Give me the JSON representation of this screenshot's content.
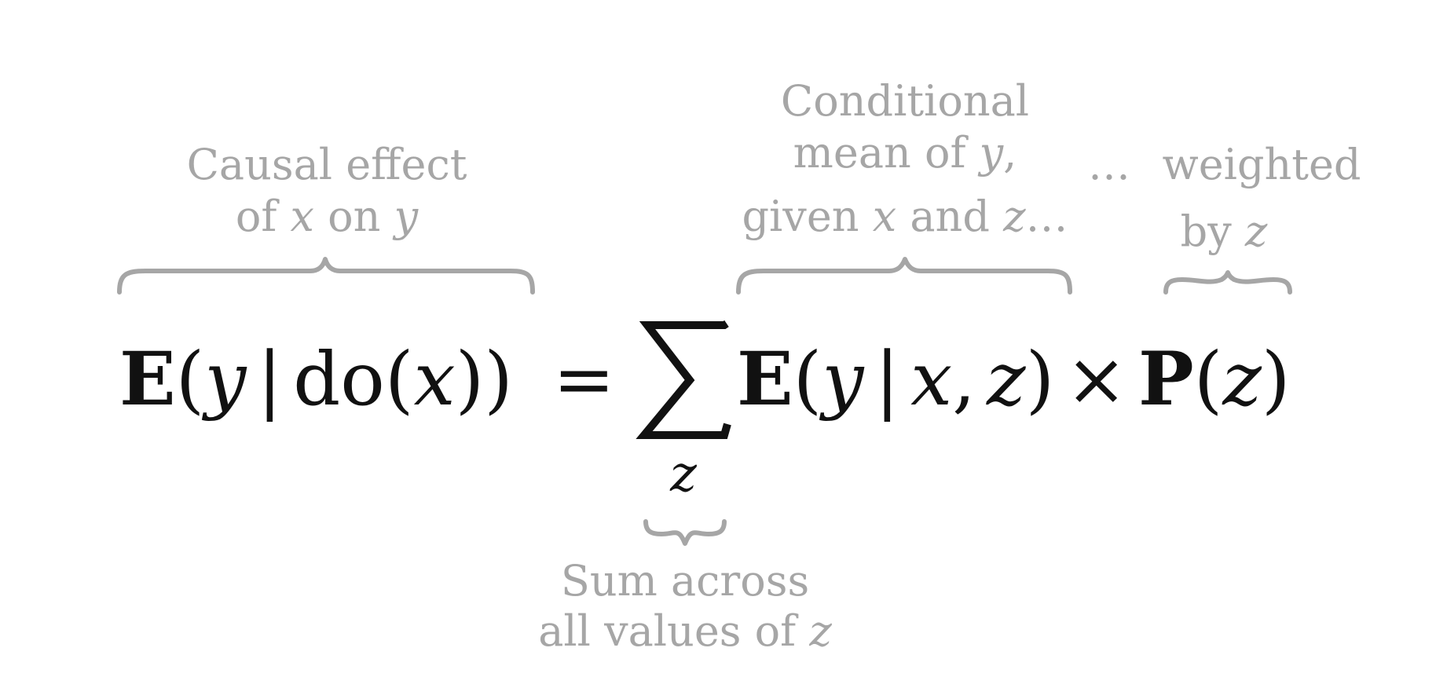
{
  "equation": {
    "lhs": {
      "E": "E",
      "open": "(",
      "y": "y",
      "bar": "|",
      "do": "do",
      "open2": "(",
      "x": "x",
      "close": "))"
    },
    "equals": "=",
    "sum_index": "z",
    "rhs": {
      "E": "E",
      "open": "(",
      "y": "y",
      "bar": "|",
      "x": "x",
      "comma": ",",
      "z": "z",
      "close": ")",
      "times": "×",
      "P": "P",
      "open2": "(",
      "z2": "z",
      "close2": ")"
    }
  },
  "annotations": {
    "causal_effect": {
      "line1": "Causal effect",
      "line2_a": "of ",
      "line2_x": "x",
      "line2_b": " on ",
      "line2_y": "y"
    },
    "conditional_mean": {
      "line1": "Conditional",
      "line2_a": "mean of ",
      "line2_y": "y",
      "line2_b": ",",
      "line3_a": "given ",
      "line3_x": "x",
      "line3_b": " and ",
      "line3_z": "z",
      "line3_c": "…"
    },
    "weighted": {
      "ellipsis": "…",
      "line1": "weighted",
      "line2_a": "by ",
      "line2_z": "z"
    },
    "sum_across": {
      "line1": "Sum across",
      "line2_a": "all values of ",
      "line2_z": "z"
    }
  },
  "colors": {
    "annotation": "#a6a6a6",
    "equation": "#111111",
    "background": "#ffffff"
  }
}
